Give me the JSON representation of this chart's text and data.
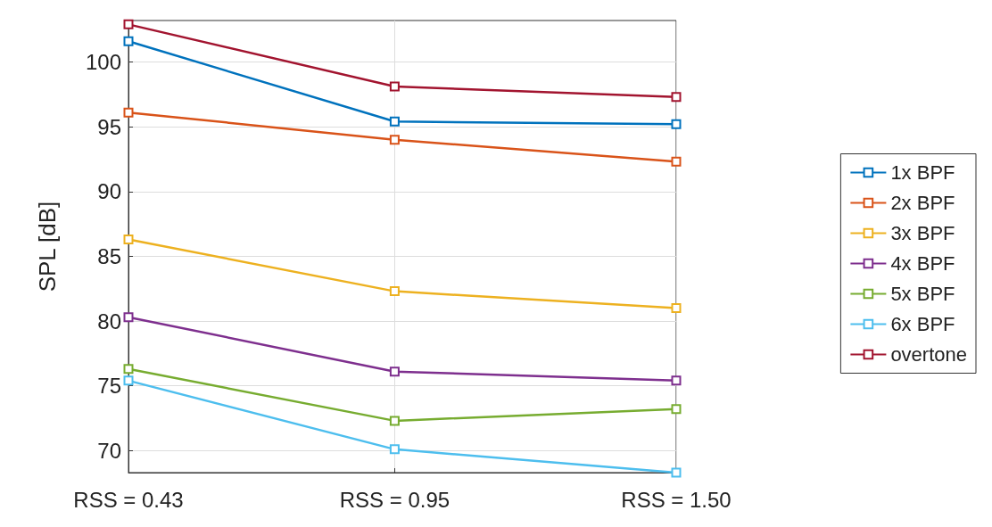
{
  "chart_data": {
    "type": "line",
    "ylabel": "SPL [dB]",
    "x": [
      0.43,
      0.95,
      1.5
    ],
    "xlim": [
      0.43,
      1.5
    ],
    "xticks": [
      {
        "value": 0.43,
        "label": "RSS = 0.43"
      },
      {
        "value": 0.95,
        "label": "RSS = 0.95"
      },
      {
        "value": 1.5,
        "label": "RSS = 1.50"
      }
    ],
    "ylim": [
      68.3,
      103.2
    ],
    "yticks": [
      70,
      75,
      80,
      85,
      90,
      95,
      100
    ],
    "grid": true,
    "legend": "right",
    "marker": "square",
    "line_style": "solid",
    "series": [
      {
        "name": "1x BPF",
        "color": "#0072bd",
        "values": [
          101.6,
          95.4,
          95.2
        ]
      },
      {
        "name": "2x BPF",
        "color": "#d95319",
        "values": [
          96.1,
          94.0,
          92.3
        ]
      },
      {
        "name": "3x BPF",
        "color": "#edb120",
        "values": [
          86.3,
          82.3,
          81.0
        ]
      },
      {
        "name": "4x BPF",
        "color": "#7e2f8e",
        "values": [
          80.3,
          76.1,
          75.4
        ]
      },
      {
        "name": "5x BPF",
        "color": "#77ac30",
        "values": [
          76.3,
          72.3,
          73.2
        ]
      },
      {
        "name": "6x BPF",
        "color": "#4dbeee",
        "values": [
          75.4,
          70.1,
          68.3
        ]
      },
      {
        "name": "overtone",
        "color": "#a2142f",
        "values": [
          102.9,
          98.1,
          97.3
        ]
      }
    ]
  }
}
